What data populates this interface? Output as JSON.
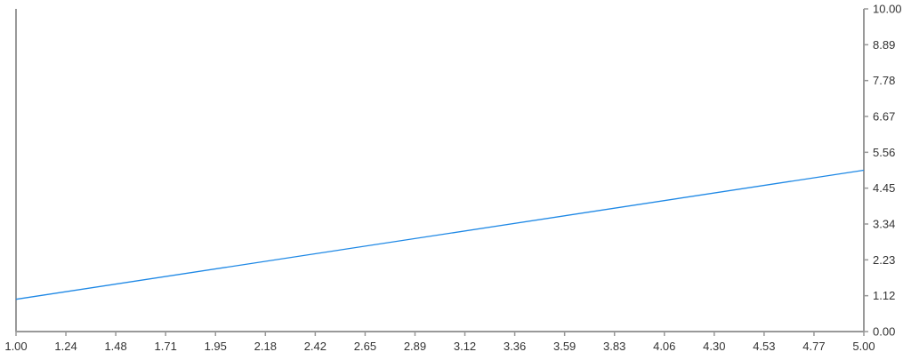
{
  "chart_data": {
    "type": "line",
    "x_tick_labels": [
      "1.00",
      "1.24",
      "1.48",
      "1.71",
      "1.95",
      "2.18",
      "2.42",
      "2.65",
      "2.89",
      "3.12",
      "3.36",
      "3.59",
      "3.83",
      "4.06",
      "4.30",
      "4.53",
      "4.77",
      "5.00"
    ],
    "y_tick_labels": [
      "0.00",
      "1.12",
      "2.23",
      "3.34",
      "4.45",
      "5.56",
      "6.67",
      "7.78",
      "8.89",
      "10.00"
    ],
    "xlim": [
      1,
      5
    ],
    "ylim": [
      0,
      10
    ],
    "y_axis_side": "right",
    "grid": false,
    "series": [
      {
        "x": [
          1,
          5
        ],
        "y": [
          1,
          5
        ],
        "color": "#1e88e5"
      }
    ],
    "axis_color": "#999999"
  }
}
